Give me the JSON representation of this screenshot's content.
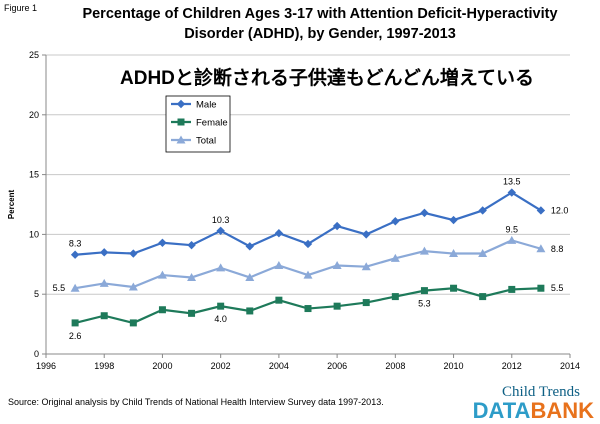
{
  "figure_label": "Figure 1",
  "title_line1": "Percentage of Children Ages 3-17 with Attention Deficit-Hyperactivity",
  "title_line2": "Disorder (ADHD), by Gender, 1997-2013",
  "overlay_title_jp": "ADHDと診断される子供達もどんどん増えている",
  "source": "Source:  Original analysis by Child Trends of National Health Interview Survey data 1997-2013.",
  "logo": {
    "top": "Child Trends",
    "data": "DATA",
    "bank": "BANK"
  },
  "chart_data": {
    "type": "line",
    "ylabel": "Percent",
    "xlim": [
      1996,
      2014
    ],
    "ylim": [
      0,
      25
    ],
    "x_ticks": [
      "1996",
      "1998",
      "2000",
      "2002",
      "2004",
      "2006",
      "2008",
      "2010",
      "2012",
      "2014"
    ],
    "y_ticks": [
      "0",
      "5",
      "10",
      "15",
      "20",
      "25"
    ],
    "grid": true,
    "legend_position": "top-left",
    "x": [
      1997,
      1998,
      1999,
      2000,
      2001,
      2002,
      2003,
      2004,
      2005,
      2006,
      2007,
      2008,
      2009,
      2010,
      2011,
      2012,
      2013
    ],
    "series": [
      {
        "name": "Male",
        "color": "#3a6fc4",
        "marker": "diamond",
        "values": [
          8.3,
          8.5,
          8.4,
          9.3,
          9.1,
          10.3,
          9.0,
          10.1,
          9.2,
          10.7,
          10.0,
          11.1,
          11.8,
          11.2,
          12.0,
          13.5,
          12.0
        ]
      },
      {
        "name": "Female",
        "color": "#1e7a5a",
        "marker": "square",
        "values": [
          2.6,
          3.2,
          2.6,
          3.7,
          3.4,
          4.0,
          3.6,
          4.5,
          3.8,
          4.0,
          4.3,
          4.8,
          5.3,
          5.5,
          4.8,
          5.4,
          5.5
        ]
      },
      {
        "name": "Total",
        "color": "#8ba9d8",
        "marker": "triangle",
        "values": [
          5.5,
          5.9,
          5.6,
          6.6,
          6.4,
          7.2,
          6.4,
          7.4,
          6.6,
          7.4,
          7.3,
          8.0,
          8.6,
          8.4,
          8.4,
          9.5,
          8.8
        ]
      }
    ],
    "annotations": [
      {
        "text": "8.3",
        "series": 0,
        "x": 1997,
        "pos": "above"
      },
      {
        "text": "10.3",
        "series": 0,
        "x": 2002,
        "pos": "above"
      },
      {
        "text": "13.5",
        "series": 0,
        "x": 2012,
        "pos": "above"
      },
      {
        "text": "12.0",
        "series": 0,
        "x": 2013,
        "pos": "right"
      },
      {
        "text": "9.5",
        "series": 2,
        "x": 2012,
        "pos": "above"
      },
      {
        "text": "8.8",
        "series": 2,
        "x": 2013,
        "pos": "right"
      },
      {
        "text": "5.5",
        "series": 2,
        "x": 1997,
        "pos": "left"
      },
      {
        "text": "2.6",
        "series": 1,
        "x": 1997,
        "pos": "below"
      },
      {
        "text": "4.0",
        "series": 1,
        "x": 2002,
        "pos": "below"
      },
      {
        "text": "5.3",
        "series": 1,
        "x": 2009,
        "pos": "below"
      },
      {
        "text": "5.5",
        "series": 1,
        "x": 2013,
        "pos": "right"
      }
    ]
  }
}
